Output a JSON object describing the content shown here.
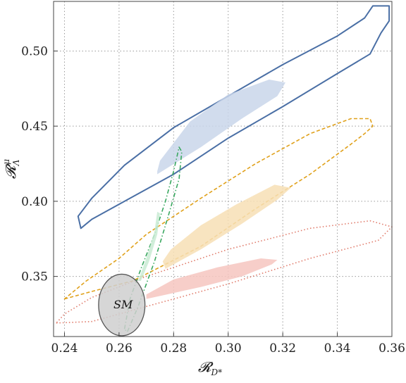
{
  "chart_data": {
    "type": "contour",
    "xlabel": "𝓡",
    "xlabel_sub": "D*",
    "ylabel": "𝓡",
    "ylabel_sub": "Λ",
    "ylabel_sup": "μ",
    "xlim": [
      0.236,
      0.36
    ],
    "ylim": [
      0.31,
      0.533
    ],
    "xticks": [
      0.24,
      0.26,
      0.28,
      0.3,
      0.32,
      0.34,
      0.36
    ],
    "yticks": [
      0.35,
      0.4,
      0.45,
      0.5
    ],
    "xtick_labels": [
      "0.24",
      "0.26",
      "0.28",
      "0.30",
      "0.32",
      "0.34",
      "0.36"
    ],
    "ytick_labels": [
      "0.35",
      "0.40",
      "0.45",
      "0.50"
    ],
    "grid": true,
    "colors": {
      "blue": "#4a6fa5",
      "blue_fill": "#c9d6ea",
      "orange": "#e0a11b",
      "orange_fill": "#f7dfb5",
      "green": "#3aa860",
      "green_fill": "#c9ebd3",
      "red": "#e07a6a",
      "red_fill": "#f6c6bf",
      "sm_fill": "#cfcfcf",
      "sm_stroke": "#555555"
    },
    "regions": [
      {
        "kind": "outline",
        "color": "blue",
        "style": "solid",
        "points": [
          [
            0.246,
            0.382
          ],
          [
            0.25,
            0.388
          ],
          [
            0.263,
            0.401
          ],
          [
            0.28,
            0.418
          ],
          [
            0.3,
            0.442
          ],
          [
            0.32,
            0.463
          ],
          [
            0.34,
            0.485
          ],
          [
            0.352,
            0.498
          ],
          [
            0.356,
            0.512
          ],
          [
            0.359,
            0.52
          ],
          [
            0.359,
            0.53
          ],
          [
            0.353,
            0.53
          ],
          [
            0.35,
            0.522
          ],
          [
            0.34,
            0.51
          ],
          [
            0.32,
            0.491
          ],
          [
            0.3,
            0.47
          ],
          [
            0.28,
            0.449
          ],
          [
            0.262,
            0.424
          ],
          [
            0.25,
            0.402
          ],
          [
            0.245,
            0.39
          ]
        ]
      },
      {
        "kind": "filled",
        "color": "blue_fill",
        "points": [
          [
            0.274,
            0.418
          ],
          [
            0.29,
            0.436
          ],
          [
            0.305,
            0.455
          ],
          [
            0.318,
            0.47
          ],
          [
            0.321,
            0.479
          ],
          [
            0.315,
            0.481
          ],
          [
            0.3,
            0.471
          ],
          [
            0.286,
            0.453
          ],
          [
            0.275,
            0.427
          ],
          [
            0.274,
            0.42
          ]
        ]
      },
      {
        "kind": "outline",
        "color": "orange",
        "style": "dashed",
        "points": [
          [
            0.24,
            0.335
          ],
          [
            0.25,
            0.34
          ],
          [
            0.265,
            0.347
          ],
          [
            0.29,
            0.37
          ],
          [
            0.31,
            0.395
          ],
          [
            0.33,
            0.418
          ],
          [
            0.345,
            0.438
          ],
          [
            0.35,
            0.445
          ],
          [
            0.353,
            0.45
          ],
          [
            0.352,
            0.455
          ],
          [
            0.345,
            0.455
          ],
          [
            0.33,
            0.445
          ],
          [
            0.31,
            0.425
          ],
          [
            0.29,
            0.402
          ],
          [
            0.27,
            0.378
          ],
          [
            0.26,
            0.362
          ],
          [
            0.248,
            0.347
          ],
          [
            0.24,
            0.335
          ]
        ]
      },
      {
        "kind": "filled",
        "color": "orange_fill",
        "points": [
          [
            0.277,
            0.355
          ],
          [
            0.29,
            0.368
          ],
          [
            0.305,
            0.385
          ],
          [
            0.318,
            0.401
          ],
          [
            0.323,
            0.409
          ],
          [
            0.317,
            0.411
          ],
          [
            0.303,
            0.398
          ],
          [
            0.29,
            0.384
          ],
          [
            0.279,
            0.368
          ],
          [
            0.276,
            0.36
          ]
        ]
      },
      {
        "kind": "outline",
        "color": "red",
        "style": "dotted",
        "points": [
          [
            0.237,
            0.319
          ],
          [
            0.25,
            0.32
          ],
          [
            0.27,
            0.33
          ],
          [
            0.3,
            0.345
          ],
          [
            0.33,
            0.362
          ],
          [
            0.355,
            0.374
          ],
          [
            0.36,
            0.383
          ],
          [
            0.352,
            0.387
          ],
          [
            0.33,
            0.382
          ],
          [
            0.3,
            0.368
          ],
          [
            0.27,
            0.35
          ],
          [
            0.25,
            0.336
          ],
          [
            0.24,
            0.325
          ]
        ]
      },
      {
        "kind": "filled",
        "color": "red_fill",
        "points": [
          [
            0.27,
            0.335
          ],
          [
            0.29,
            0.343
          ],
          [
            0.305,
            0.35
          ],
          [
            0.316,
            0.358
          ],
          [
            0.318,
            0.361
          ],
          [
            0.312,
            0.362
          ],
          [
            0.296,
            0.356
          ],
          [
            0.28,
            0.348
          ],
          [
            0.27,
            0.338
          ]
        ]
      },
      {
        "kind": "outline",
        "color": "green",
        "style": "dashdot",
        "points": [
          [
            0.262,
            0.315
          ],
          [
            0.264,
            0.335
          ],
          [
            0.268,
            0.355
          ],
          [
            0.273,
            0.378
          ],
          [
            0.277,
            0.4
          ],
          [
            0.28,
            0.42
          ],
          [
            0.282,
            0.436
          ],
          [
            0.283,
            0.433
          ],
          [
            0.282,
            0.415
          ],
          [
            0.278,
            0.39
          ],
          [
            0.273,
            0.36
          ],
          [
            0.267,
            0.33
          ],
          [
            0.263,
            0.313
          ]
        ]
      },
      {
        "kind": "filled",
        "color": "green_fill",
        "points": [
          [
            0.267,
            0.347
          ],
          [
            0.27,
            0.362
          ],
          [
            0.273,
            0.38
          ],
          [
            0.274,
            0.393
          ],
          [
            0.275,
            0.392
          ],
          [
            0.274,
            0.378
          ],
          [
            0.271,
            0.36
          ],
          [
            0.268,
            0.347
          ]
        ]
      },
      {
        "kind": "ellipse",
        "color": "sm_fill",
        "cx": 0.261,
        "cy": 0.331,
        "rx": 0.0085,
        "ry": 0.0205
      }
    ],
    "annotations": [
      {
        "text": "SM",
        "x": 0.2615,
        "y": 0.3315
      }
    ]
  }
}
